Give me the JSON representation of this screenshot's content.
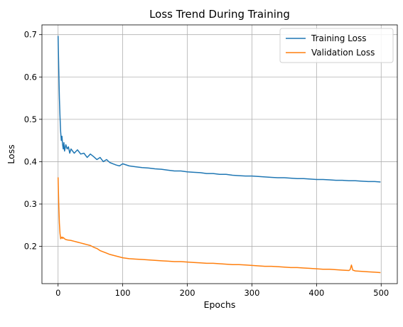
{
  "chart_data": {
    "type": "line",
    "title": "Loss Trend During Training",
    "xlabel": "Epochs",
    "ylabel": "Loss",
    "xlim": [
      -25,
      525
    ],
    "ylim": [
      0.112,
      0.723
    ],
    "xticks": [
      0,
      100,
      200,
      300,
      400,
      500
    ],
    "yticks": [
      0.2,
      0.3,
      0.4,
      0.5,
      0.6,
      0.7
    ],
    "grid": true,
    "legend_position": "top-right",
    "series": [
      {
        "name": "Training Loss",
        "color": "#1f77b4",
        "x": [
          0,
          1,
          2,
          3,
          4,
          5,
          6,
          7,
          8,
          9,
          10,
          12,
          14,
          16,
          18,
          20,
          25,
          30,
          35,
          40,
          45,
          50,
          55,
          60,
          65,
          70,
          75,
          80,
          85,
          90,
          95,
          100,
          110,
          120,
          130,
          140,
          150,
          160,
          170,
          180,
          190,
          200,
          210,
          220,
          230,
          240,
          250,
          260,
          270,
          280,
          290,
          300,
          310,
          320,
          330,
          340,
          350,
          360,
          370,
          380,
          390,
          400,
          410,
          420,
          430,
          440,
          450,
          460,
          470,
          480,
          490,
          499
        ],
        "y": [
          0.697,
          0.62,
          0.55,
          0.505,
          0.47,
          0.45,
          0.46,
          0.44,
          0.43,
          0.445,
          0.425,
          0.44,
          0.43,
          0.435,
          0.42,
          0.43,
          0.42,
          0.428,
          0.418,
          0.42,
          0.41,
          0.418,
          0.412,
          0.405,
          0.41,
          0.4,
          0.405,
          0.398,
          0.395,
          0.392,
          0.39,
          0.395,
          0.39,
          0.388,
          0.386,
          0.385,
          0.383,
          0.382,
          0.38,
          0.378,
          0.378,
          0.376,
          0.375,
          0.374,
          0.372,
          0.372,
          0.37,
          0.37,
          0.368,
          0.367,
          0.366,
          0.366,
          0.365,
          0.364,
          0.363,
          0.362,
          0.362,
          0.361,
          0.36,
          0.36,
          0.359,
          0.358,
          0.358,
          0.357,
          0.356,
          0.356,
          0.355,
          0.355,
          0.354,
          0.353,
          0.353,
          0.352
        ]
      },
      {
        "name": "Validation Loss",
        "color": "#ff7f0e",
        "x": [
          0,
          1,
          2,
          3,
          4,
          5,
          6,
          7,
          8,
          10,
          12,
          15,
          20,
          25,
          30,
          35,
          40,
          45,
          50,
          55,
          60,
          65,
          70,
          75,
          80,
          90,
          100,
          110,
          120,
          130,
          140,
          150,
          160,
          170,
          180,
          190,
          200,
          210,
          220,
          230,
          240,
          250,
          260,
          270,
          280,
          290,
          300,
          310,
          320,
          330,
          340,
          350,
          360,
          370,
          380,
          390,
          400,
          410,
          420,
          430,
          440,
          450,
          452,
          454,
          456,
          460,
          470,
          480,
          490,
          499
        ],
        "y": [
          0.363,
          0.3,
          0.255,
          0.23,
          0.218,
          0.22,
          0.222,
          0.219,
          0.221,
          0.218,
          0.216,
          0.215,
          0.214,
          0.212,
          0.21,
          0.208,
          0.206,
          0.204,
          0.202,
          0.198,
          0.195,
          0.19,
          0.187,
          0.184,
          0.181,
          0.177,
          0.173,
          0.171,
          0.17,
          0.169,
          0.168,
          0.167,
          0.166,
          0.165,
          0.164,
          0.164,
          0.163,
          0.162,
          0.161,
          0.16,
          0.16,
          0.159,
          0.158,
          0.157,
          0.157,
          0.156,
          0.155,
          0.154,
          0.153,
          0.153,
          0.152,
          0.151,
          0.15,
          0.15,
          0.149,
          0.148,
          0.147,
          0.146,
          0.146,
          0.145,
          0.144,
          0.143,
          0.145,
          0.156,
          0.144,
          0.142,
          0.141,
          0.14,
          0.139,
          0.138
        ]
      }
    ]
  }
}
